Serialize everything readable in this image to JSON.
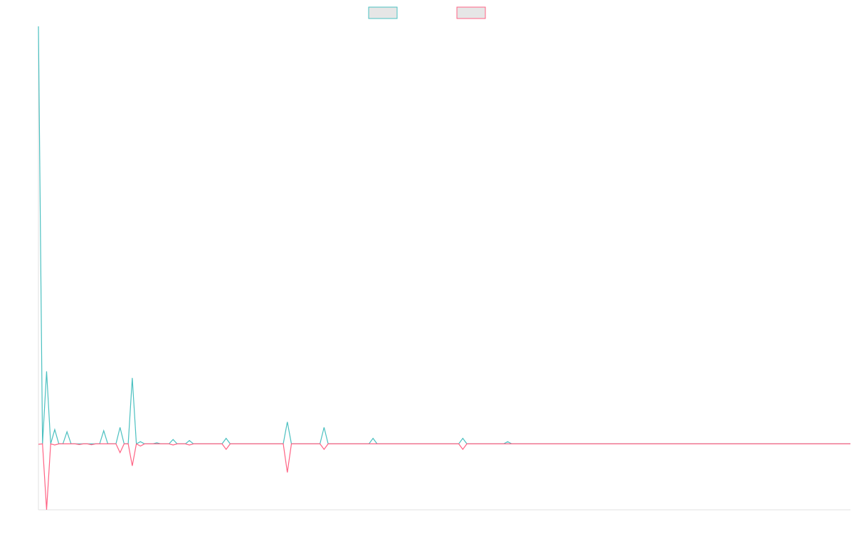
{
  "chart_data": {
    "type": "line",
    "title": "",
    "xlabel": "",
    "ylabel": "",
    "legend_position": "top-center",
    "grid": false,
    "x_count": 200,
    "ylim": [
      -300,
      1900
    ],
    "series": [
      {
        "color": "#4bc0c0",
        "points": [
          [
            0,
            1900
          ],
          [
            2,
            330
          ],
          [
            4,
            65
          ],
          [
            7,
            55
          ],
          [
            16,
            60
          ],
          [
            20,
            75
          ],
          [
            23,
            300
          ],
          [
            25,
            10
          ],
          [
            29,
            5
          ],
          [
            33,
            20
          ],
          [
            37,
            15
          ],
          [
            46,
            25
          ],
          [
            61,
            100
          ],
          [
            70,
            75
          ],
          [
            82,
            25
          ],
          [
            104,
            25
          ],
          [
            115,
            10
          ]
        ]
      },
      {
        "color": "#ff6384",
        "points": [
          [
            0,
            -2
          ],
          [
            2,
            -300
          ],
          [
            4,
            -5
          ],
          [
            10,
            -3
          ],
          [
            13,
            -4
          ],
          [
            20,
            -40
          ],
          [
            23,
            -100
          ],
          [
            25,
            -10
          ],
          [
            33,
            -5
          ],
          [
            37,
            -5
          ],
          [
            46,
            -25
          ],
          [
            61,
            -130
          ],
          [
            70,
            -25
          ],
          [
            104,
            -25
          ]
        ]
      }
    ]
  }
}
